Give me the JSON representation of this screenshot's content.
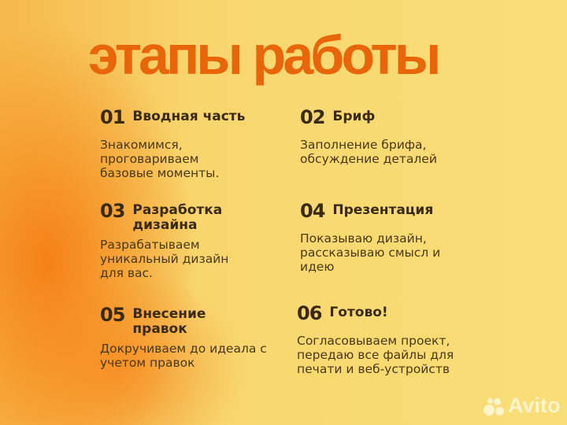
{
  "title": "этапы работы",
  "steps": [
    {
      "number": "01",
      "heading": "Вводная часть",
      "body": "Знакомимся, проговариваем базовые моменты."
    },
    {
      "number": "02",
      "heading": "Бриф",
      "body": "Заполнение брифа, обсуждение деталей"
    },
    {
      "number": "03",
      "heading": "Разработка дизайна",
      "body": "Разрабатываем уникальный дизайн для вас."
    },
    {
      "number": "04",
      "heading": "Презентация",
      "body": "Показываю дизайн, рассказываю смысл и идею"
    },
    {
      "number": "05",
      "heading": "Внесение правок",
      "body": "Докручиваем до идеала с учетом правок"
    },
    {
      "number": "06",
      "heading": "Готово!",
      "body": "Согласовываем проект, передаю все файлы для печати и веб-устройств"
    }
  ],
  "watermark": "Avito",
  "colors": {
    "accent": "#e8650a",
    "text": "#3a2a12",
    "background": "#f8dc72",
    "gradient": "#f57d14"
  }
}
